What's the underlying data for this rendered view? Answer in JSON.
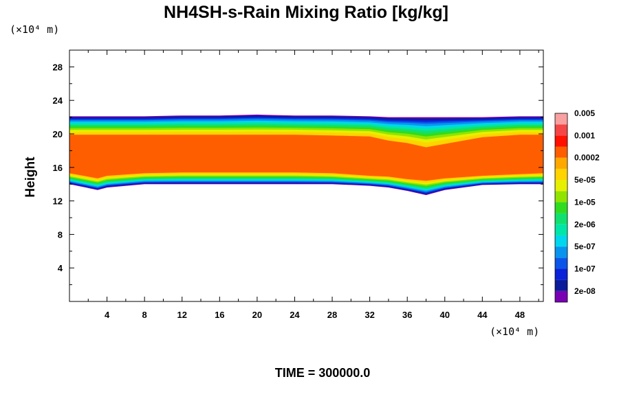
{
  "title": "NH4SH-s-Rain Mixing Ratio [kg/kg]",
  "ylabel": "Height",
  "y_unit": "(×10⁴ m)",
  "x_unit": "(×10⁴ m)",
  "time_label": "TIME = 300000.0",
  "chart_data": {
    "type": "heatmap",
    "title": "NH4SH-s-Rain Mixing Ratio [kg/kg]",
    "xlabel": "",
    "ylabel": "Height",
    "xlim": [
      0,
      50.5
    ],
    "ylim": [
      0,
      30
    ],
    "x_ticks": [
      4,
      8,
      12,
      16,
      20,
      24,
      28,
      32,
      36,
      40,
      44,
      48
    ],
    "y_ticks": [
      4,
      8,
      12,
      16,
      20,
      24,
      28
    ],
    "grid": false,
    "colorbar": {
      "placement": "right",
      "colors": [
        "#7a00b4",
        "#0a1c9a",
        "#0a22d8",
        "#0b56e8",
        "#0894ee",
        "#00d6ee",
        "#00e6a8",
        "#10e070",
        "#30dc20",
        "#90e400",
        "#e6f000",
        "#ffd400",
        "#ffa800",
        "#ff5e00",
        "#ff1000",
        "#f44646",
        "#f9a0a0"
      ],
      "tick_labels": [
        "2e-08",
        "1e-07",
        "5e-07",
        "2e-06",
        "1e-05",
        "5e-05",
        "0.0002",
        "0.001",
        "0.005"
      ]
    },
    "layer_x": [
      0,
      3,
      4,
      8,
      12,
      16,
      20,
      24,
      28,
      32,
      34,
      36,
      38,
      40,
      44,
      48,
      50.5
    ],
    "layer_top_y": [
      22.1,
      22.1,
      22.1,
      22.1,
      22.2,
      22.2,
      22.3,
      22.2,
      22.2,
      22.1,
      22.0,
      22.0,
      22.0,
      22.0,
      22.0,
      22.1,
      22.1
    ],
    "layer_bottom_y": [
      14.0,
      13.3,
      13.6,
      14.0,
      14.0,
      14.0,
      14.0,
      14.0,
      14.0,
      13.8,
      13.6,
      13.2,
      12.7,
      13.3,
      13.9,
      14.0,
      14.0
    ],
    "core_top_y": [
      19.9,
      19.9,
      19.9,
      19.9,
      19.9,
      19.9,
      19.9,
      19.9,
      19.8,
      19.7,
      19.2,
      18.9,
      18.4,
      18.8,
      19.6,
      19.9,
      19.9
    ],
    "core_bottom_y": [
      15.3,
      14.7,
      15.0,
      15.3,
      15.4,
      15.4,
      15.4,
      15.4,
      15.3,
      15.0,
      14.9,
      14.6,
      14.4,
      14.7,
      15.0,
      15.2,
      15.3
    ]
  }
}
